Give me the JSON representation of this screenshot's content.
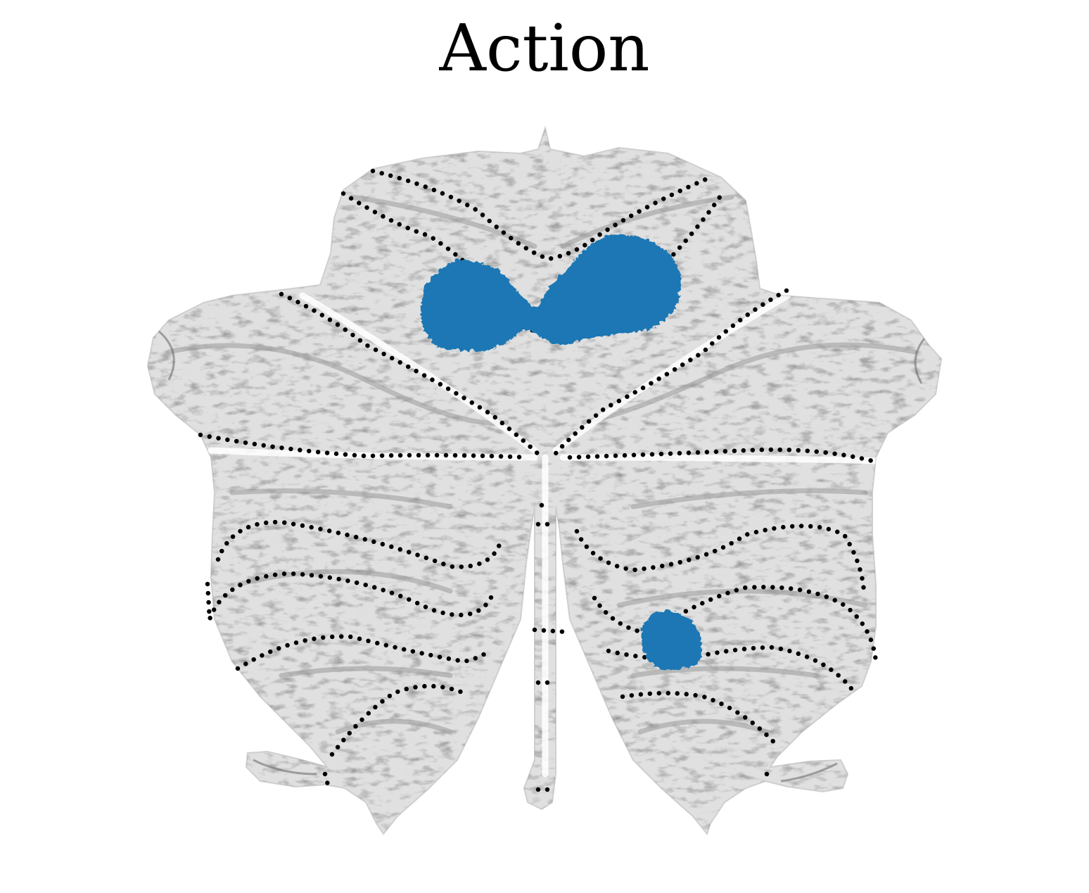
{
  "title": "Action",
  "colors": {
    "background": "#ffffff",
    "flatmap_base": "#e2e2e2",
    "flatmap_texture_dark": "#6e6e6e",
    "activation_blob": "#1f77b4",
    "boundary_dots": "#000000"
  },
  "icons": {
    "flatmap": "cerebellum-flatmap",
    "boundaries": "lobule-boundary-dotted-lines",
    "activation": "activation-cluster"
  }
}
